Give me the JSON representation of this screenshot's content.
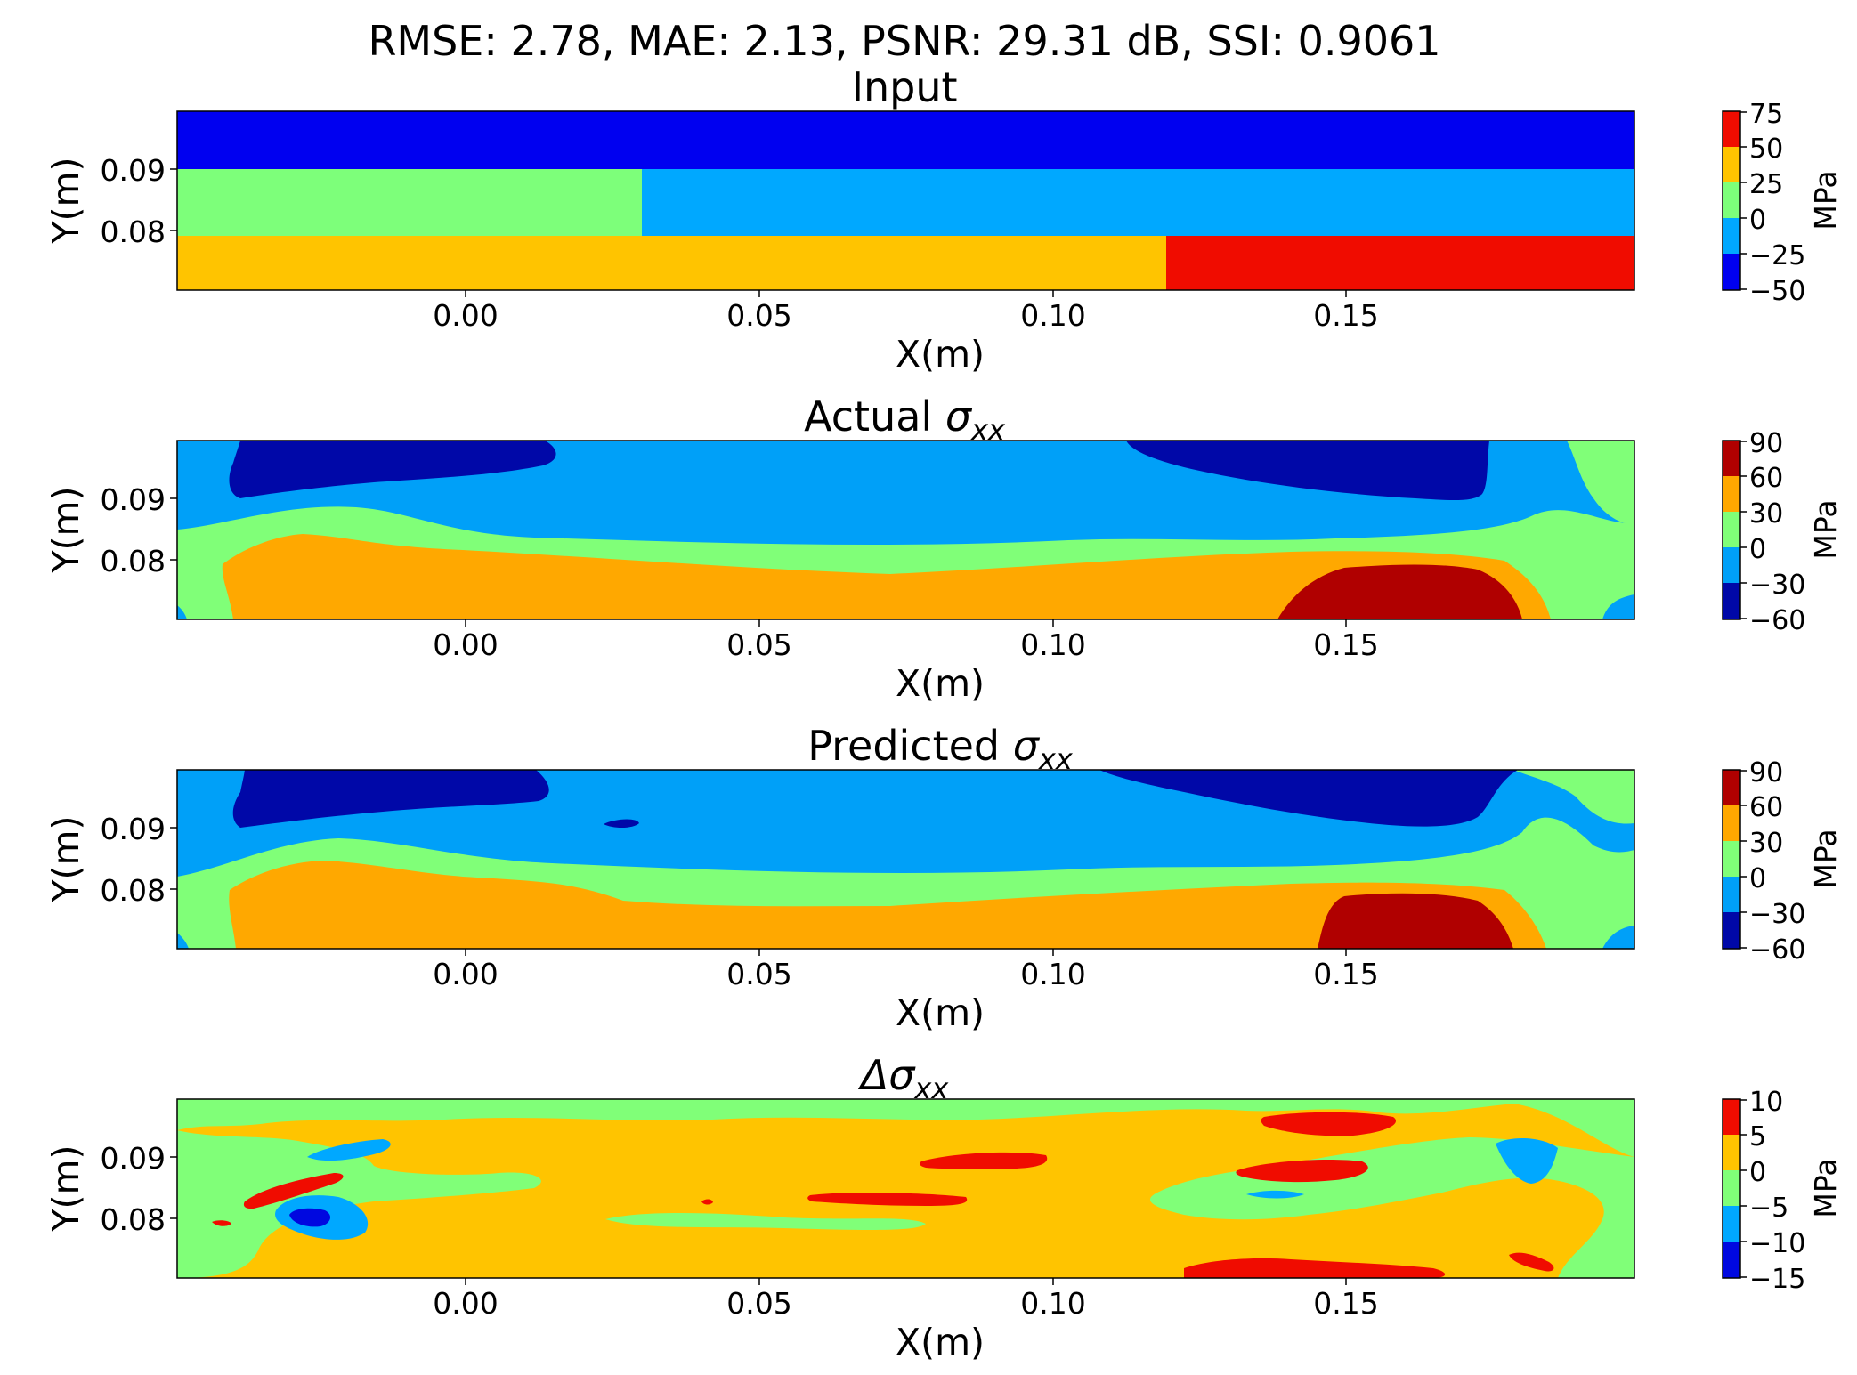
{
  "figure": {
    "suptitle": "RMSE: 2.78, MAE: 2.13, PSNR: 29.31 dB, SSI: 0.9061"
  },
  "chart_data": [
    {
      "type": "heatmap",
      "title": "Input",
      "xlabel": "X(m)",
      "ylabel": "Y(m)",
      "xlim": [
        -0.049,
        0.199
      ],
      "ylim": [
        0.0705,
        0.0995
      ],
      "xticks": [
        "0.00",
        "0.05",
        "0.10",
        "0.15"
      ],
      "xtick_values": [
        0.0,
        0.05,
        0.1,
        0.15
      ],
      "yticks": [
        "0.09",
        "0.08"
      ],
      "ytick_values": [
        0.09,
        0.08
      ],
      "colorbar_label": "MPa",
      "colorbar_ticks": [
        "75",
        "50",
        "25",
        "0",
        "−25",
        "−50"
      ],
      "colorbar_levels": [
        -50,
        -25,
        0,
        25,
        50,
        75
      ],
      "colorbar_colors": [
        "#0000f0",
        "#00a8ff",
        "#7dff7a",
        "#ffc400",
        "#f00c00"
      ],
      "regions": [
        {
          "x": [
            -0.049,
            0.199
          ],
          "y": [
            0.09,
            0.0995
          ],
          "value": -37.5
        },
        {
          "x": [
            -0.049,
            0.03
          ],
          "y": [
            0.0795,
            0.09
          ],
          "value": 12.5
        },
        {
          "x": [
            0.03,
            0.199
          ],
          "y": [
            0.0795,
            0.09
          ],
          "value": -12.5
        },
        {
          "x": [
            -0.049,
            0.12
          ],
          "y": [
            0.0705,
            0.0795
          ],
          "value": 37.5
        },
        {
          "x": [
            0.12,
            0.199
          ],
          "y": [
            0.0705,
            0.0795
          ],
          "value": 62.5
        }
      ]
    },
    {
      "type": "heatmap",
      "title": "Actual",
      "title_symbol": "σ",
      "title_subscript": "xx",
      "xlabel": "X(m)",
      "ylabel": "Y(m)",
      "xlim": [
        -0.049,
        0.199
      ],
      "ylim": [
        0.0705,
        0.0995
      ],
      "xticks": [
        "0.00",
        "0.05",
        "0.10",
        "0.15"
      ],
      "xtick_values": [
        0.0,
        0.05,
        0.1,
        0.15
      ],
      "yticks": [
        "0.09",
        "0.08"
      ],
      "ytick_values": [
        0.09,
        0.08
      ],
      "colorbar_label": "MPa",
      "colorbar_ticks": [
        "90",
        "60",
        "30",
        "0",
        "−30",
        "−60"
      ],
      "colorbar_levels": [
        -60,
        -30,
        0,
        30,
        60,
        90
      ],
      "colorbar_colors": [
        "#0008a8",
        "#00a0f8",
        "#80ff78",
        "#ffa800",
        "#b00000"
      ]
    },
    {
      "type": "heatmap",
      "title": "Predicted",
      "title_symbol": "σ",
      "title_subscript": "xx",
      "xlabel": "X(m)",
      "ylabel": "Y(m)",
      "xlim": [
        -0.049,
        0.199
      ],
      "ylim": [
        0.0705,
        0.0995
      ],
      "xticks": [
        "0.00",
        "0.05",
        "0.10",
        "0.15"
      ],
      "xtick_values": [
        0.0,
        0.05,
        0.1,
        0.15
      ],
      "yticks": [
        "0.09",
        "0.08"
      ],
      "ytick_values": [
        0.09,
        0.08
      ],
      "colorbar_label": "MPa",
      "colorbar_ticks": [
        "90",
        "60",
        "30",
        "0",
        "−30",
        "−60"
      ],
      "colorbar_levels": [
        -60,
        -30,
        0,
        30,
        60,
        90
      ],
      "colorbar_colors": [
        "#0008a8",
        "#00a0f8",
        "#80ff78",
        "#ffa800",
        "#b00000"
      ]
    },
    {
      "type": "heatmap",
      "title": "",
      "title_symbol": "Δσ",
      "title_subscript": "xx",
      "xlabel": "X(m)",
      "ylabel": "Y(m)",
      "xlim": [
        -0.049,
        0.199
      ],
      "ylim": [
        0.0705,
        0.0995
      ],
      "xticks": [
        "0.00",
        "0.05",
        "0.10",
        "0.15"
      ],
      "xtick_values": [
        0.0,
        0.05,
        0.1,
        0.15
      ],
      "yticks": [
        "0.09",
        "0.08"
      ],
      "ytick_values": [
        0.09,
        0.08
      ],
      "colorbar_label": "MPa",
      "colorbar_ticks": [
        "10",
        "5",
        "0",
        "−5",
        "−10",
        "−15"
      ],
      "colorbar_levels": [
        -15,
        -10,
        -5,
        0,
        5,
        10
      ],
      "colorbar_colors": [
        "#0008e0",
        "#00a8ff",
        "#80ff78",
        "#ffc400",
        "#f00c00"
      ]
    }
  ]
}
